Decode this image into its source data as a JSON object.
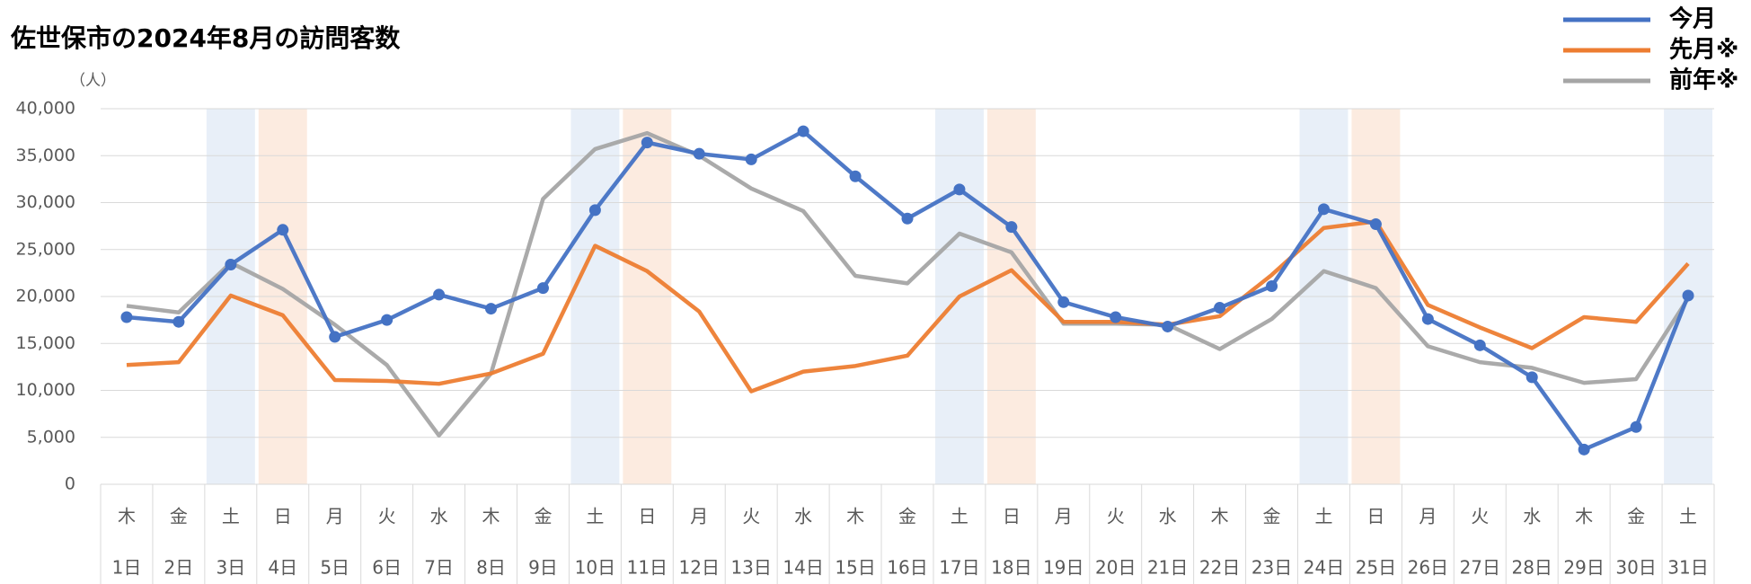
{
  "chart_data": {
    "type": "line",
    "title": "佐世保市の2024年8月の訪問客数",
    "y_unit": "（人）",
    "weekdays": [
      "木",
      "金",
      "土",
      "日",
      "月",
      "火",
      "水",
      "木",
      "金",
      "土",
      "日",
      "月",
      "火",
      "水",
      "木",
      "金",
      "土",
      "日",
      "月",
      "火",
      "水",
      "木",
      "金",
      "土",
      "日",
      "月",
      "火",
      "水",
      "木",
      "金",
      "土"
    ],
    "categories": [
      "1日",
      "2日",
      "3日",
      "4日",
      "5日",
      "6日",
      "7日",
      "8日",
      "9日",
      "10日",
      "11日",
      "12日",
      "13日",
      "14日",
      "15日",
      "16日",
      "17日",
      "18日",
      "19日",
      "20日",
      "21日",
      "22日",
      "23日",
      "24日",
      "25日",
      "26日",
      "27日",
      "28日",
      "29日",
      "30日",
      "31日"
    ],
    "shade": {
      "土": "#e8eff8",
      "日": "#fcebe0"
    },
    "series": [
      {
        "name": "今月",
        "color": "#4472c4",
        "markers": true,
        "values": [
          17800,
          17300,
          23400,
          27100,
          15700,
          17500,
          20200,
          18700,
          20900,
          29200,
          36400,
          35200,
          34600,
          37600,
          32800,
          28300,
          31400,
          27400,
          19400,
          17800,
          16800,
          18800,
          21100,
          29300,
          27700,
          17600,
          14800,
          11400,
          3700,
          6100,
          20100
        ]
      },
      {
        "name": "先月※",
        "color": "#ed7d31",
        "markers": false,
        "values": [
          12700,
          13000,
          20100,
          18000,
          11100,
          11000,
          10700,
          11800,
          13900,
          25400,
          22700,
          18400,
          9900,
          12000,
          12600,
          13700,
          20000,
          22800,
          17300,
          17300,
          17000,
          17900,
          22300,
          27300,
          28000,
          19100,
          16700,
          14500,
          17800,
          17300,
          23500
        ]
      },
      {
        "name": "前年※",
        "color": "#a5a5a5",
        "markers": false,
        "values": [
          19000,
          18300,
          23600,
          20800,
          17000,
          12700,
          5200,
          11800,
          30400,
          35700,
          37400,
          35000,
          31500,
          29100,
          22200,
          21400,
          26700,
          24700,
          17100,
          17100,
          17000,
          14400,
          17600,
          22700,
          20900,
          14700,
          13000,
          12400,
          10800,
          11200,
          19800
        ]
      }
    ],
    "ylim": [
      0,
      40000
    ],
    "yticks": [
      0,
      {
        "value": 5000,
        "label": "5,000"
      },
      {
        "value": 10000,
        "label": "10,000"
      },
      {
        "value": 15000,
        "label": "15,000"
      },
      {
        "value": 20000,
        "label": "20,000"
      },
      {
        "value": 25000,
        "label": "25,000"
      },
      {
        "value": 30000,
        "label": "30,000"
      },
      {
        "value": 35000,
        "label": "35,000"
      },
      {
        "value": 40000,
        "label": "40,000"
      }
    ],
    "grid": true
  }
}
